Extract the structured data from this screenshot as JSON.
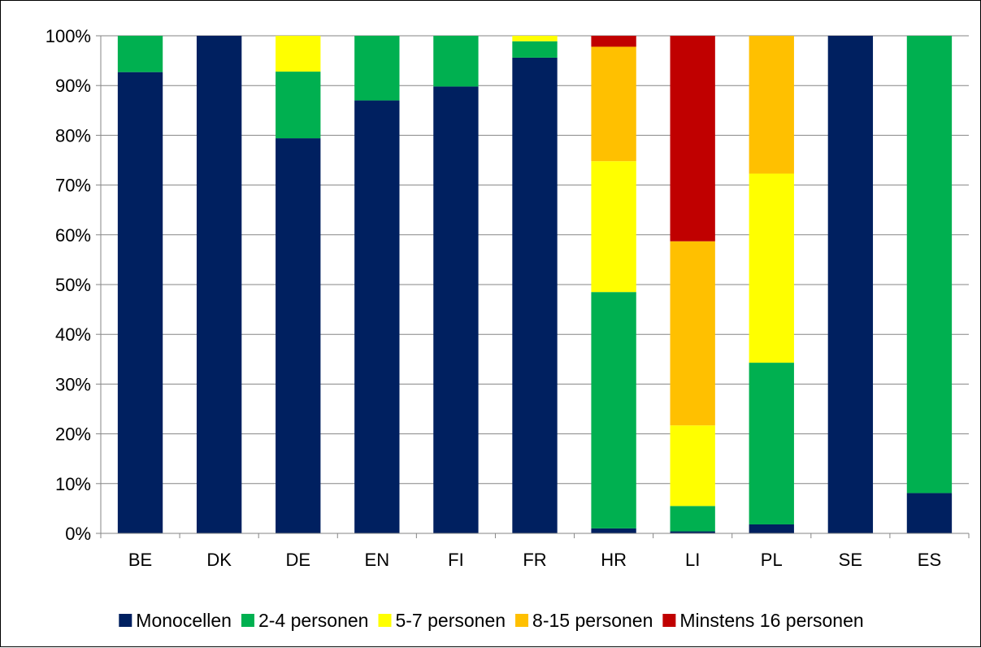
{
  "chart_data": {
    "type": "bar",
    "stacked": true,
    "percent": true,
    "title": "",
    "xlabel": "",
    "ylabel": "",
    "ylim": [
      0,
      100
    ],
    "yticks": [
      "0%",
      "10%",
      "20%",
      "30%",
      "40%",
      "50%",
      "60%",
      "70%",
      "80%",
      "90%",
      "100%"
    ],
    "grid": true,
    "legend_position": "bottom",
    "categories": [
      "BE",
      "DK",
      "DE",
      "EN",
      "FI",
      "FR",
      "HR",
      "LI",
      "PL",
      "SE",
      "ES"
    ],
    "series": [
      {
        "name": "Monocellen",
        "color": "#002060",
        "values": [
          92.7,
          100,
          79.4,
          87.0,
          89.8,
          95.6,
          1.0,
          0.4,
          1.8,
          100,
          8.1
        ]
      },
      {
        "name": "2-4 personen",
        "color": "#00B050",
        "values": [
          7.3,
          0,
          13.4,
          13.0,
          10.2,
          3.3,
          47.5,
          5.1,
          32.5,
          0,
          91.9
        ]
      },
      {
        "name": "5-7 personen",
        "color": "#FFFF00",
        "values": [
          0,
          0,
          7.2,
          0,
          0,
          1.1,
          26.3,
          16.2,
          38.0,
          0,
          0
        ]
      },
      {
        "name": "8-15 personen",
        "color": "#FFC000",
        "values": [
          0,
          0,
          0,
          0,
          0,
          0,
          23.0,
          37.0,
          27.7,
          0,
          0
        ]
      },
      {
        "name": "Minstens 16 personen",
        "color": "#C00000",
        "values": [
          0,
          0,
          0,
          0,
          0,
          0,
          2.2,
          41.3,
          0,
          0,
          0
        ]
      }
    ]
  }
}
